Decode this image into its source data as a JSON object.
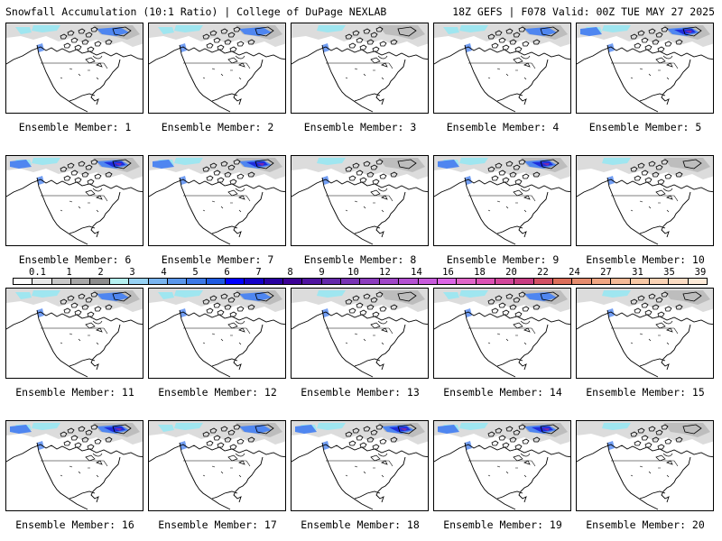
{
  "header": {
    "left": "Snowfall Accumulation (10:1 Ratio) | College of DuPage NEXLAB",
    "right": "18Z GEFS | F078 Valid: 00Z TUE MAY 27 2025"
  },
  "panels": [
    {
      "label": "Ensemble Member: 1",
      "intensity": 1
    },
    {
      "label": "Ensemble Member: 2",
      "intensity": 1
    },
    {
      "label": "Ensemble Member: 3",
      "intensity": 0
    },
    {
      "label": "Ensemble Member: 4",
      "intensity": 1
    },
    {
      "label": "Ensemble Member: 5",
      "intensity": 2
    },
    {
      "label": "Ensemble Member: 6",
      "intensity": 2
    },
    {
      "label": "Ensemble Member: 7",
      "intensity": 2
    },
    {
      "label": "Ensemble Member: 8",
      "intensity": 0
    },
    {
      "label": "Ensemble Member: 9",
      "intensity": 2
    },
    {
      "label": "Ensemble Member: 10",
      "intensity": 0
    },
    {
      "label": "Ensemble Member: 11",
      "intensity": 1
    },
    {
      "label": "Ensemble Member: 12",
      "intensity": 1
    },
    {
      "label": "Ensemble Member: 13",
      "intensity": 0
    },
    {
      "label": "Ensemble Member: 14",
      "intensity": 1
    },
    {
      "label": "Ensemble Member: 15",
      "intensity": 0
    },
    {
      "label": "Ensemble Member: 16",
      "intensity": 2
    },
    {
      "label": "Ensemble Member: 17",
      "intensity": 1
    },
    {
      "label": "Ensemble Member: 18",
      "intensity": 2
    },
    {
      "label": "Ensemble Member: 19",
      "intensity": 2
    },
    {
      "label": "Ensemble Member: 20",
      "intensity": 0
    }
  ],
  "colorbar": {
    "colors": [
      "#ffffff",
      "#e8e8e8",
      "#c8c8c8",
      "#a8a8a8",
      "#8c8c8c",
      "#b4f0f0",
      "#96d2f5",
      "#78b4f0",
      "#5a96eb",
      "#3c78e6",
      "#1e5ae1",
      "#0000ff",
      "#1400c8",
      "#2800a0",
      "#3c0096",
      "#5014a0",
      "#6428aa",
      "#7832b4",
      "#8c3cbe",
      "#a046c8",
      "#b450d2",
      "#c85adc",
      "#dc64e6",
      "#e164c8",
      "#dc50b4",
      "#d2469b",
      "#c83c82",
      "#d25064",
      "#dc6e5a",
      "#e68c6e",
      "#f0a582",
      "#f5b996",
      "#f8c8a5",
      "#fad2b4",
      "#fcdcc3",
      "#feead8"
    ],
    "labels": [
      "0.1",
      "1",
      "2",
      "3",
      "4",
      "5",
      "6",
      "7",
      "8",
      "9",
      "10",
      "12",
      "14",
      "16",
      "18",
      "20",
      "22",
      "24",
      "27",
      "31",
      "35",
      "39"
    ],
    "label_positions": [
      1,
      3,
      5,
      7,
      9,
      11,
      13,
      15,
      17,
      19,
      21,
      23,
      25,
      27,
      29,
      31,
      33,
      35,
      37,
      39,
      41,
      43
    ]
  },
  "map_colors": {
    "gray_light": "#dcdcdc",
    "gray_dark": "#a9a9a9",
    "cyan": "#9fe6f0",
    "blue": "#4f86f0",
    "deep_blue": "#1e2ddc",
    "purple": "#7a2aa8"
  }
}
